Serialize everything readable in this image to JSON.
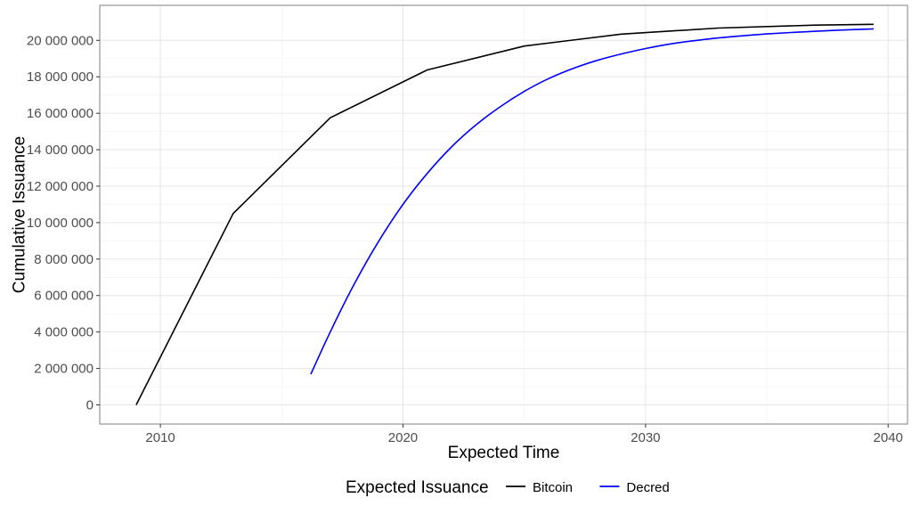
{
  "chart_data": {
    "type": "line",
    "title": "",
    "xlabel": "Expected Time",
    "ylabel": "Cumulative Issuance",
    "xlim": [
      2007.5,
      2040.8
    ],
    "ylim": [
      -1050000,
      21920000
    ],
    "xticks": [
      2010,
      2020,
      2030,
      2040
    ],
    "xtick_labels": [
      "2010",
      "2020",
      "2030",
      "2040"
    ],
    "yticks": [
      0,
      2000000,
      4000000,
      6000000,
      8000000,
      10000000,
      12000000,
      14000000,
      16000000,
      18000000,
      20000000
    ],
    "ytick_labels": [
      "0",
      "2 000 000",
      "4 000 000",
      "6 000 000",
      "8 000 000",
      "10 000 000",
      "12 000 000",
      "14 000 000",
      "16 000 000",
      "18 000 000",
      "20 000 000"
    ],
    "grid": true,
    "legend": {
      "title": "Expected Issuance",
      "position": "bottom"
    },
    "series": [
      {
        "name": "Bitcoin",
        "color": "#000000",
        "x": [
          2009.0,
          2013.0,
          2017.0,
          2021.0,
          2025.0,
          2029.0,
          2033.0,
          2037.0,
          2039.4
        ],
        "y": [
          0,
          10500000,
          15750000,
          18375000,
          19687500,
          20343750,
          20671875,
          20835937,
          20880000
        ]
      },
      {
        "name": "Decred",
        "color": "#0000ff",
        "x": [
          2016.2,
          2017.0,
          2018.0,
          2019.0,
          2020.0,
          2021.0,
          2022.0,
          2023.0,
          2024.0,
          2025.0,
          2026.0,
          2027.0,
          2028.0,
          2029.0,
          2030.0,
          2031.0,
          2032.0,
          2033.0,
          2034.0,
          2035.0,
          2036.0,
          2037.0,
          2038.0,
          2039.4
        ],
        "y": [
          1680000,
          4000000,
          6650000,
          8980000,
          11000000,
          12700000,
          14150000,
          15350000,
          16350000,
          17200000,
          17900000,
          18450000,
          18900000,
          19250000,
          19550000,
          19800000,
          19980000,
          20130000,
          20250000,
          20350000,
          20430000,
          20500000,
          20560000,
          20630000
        ]
      }
    ]
  }
}
